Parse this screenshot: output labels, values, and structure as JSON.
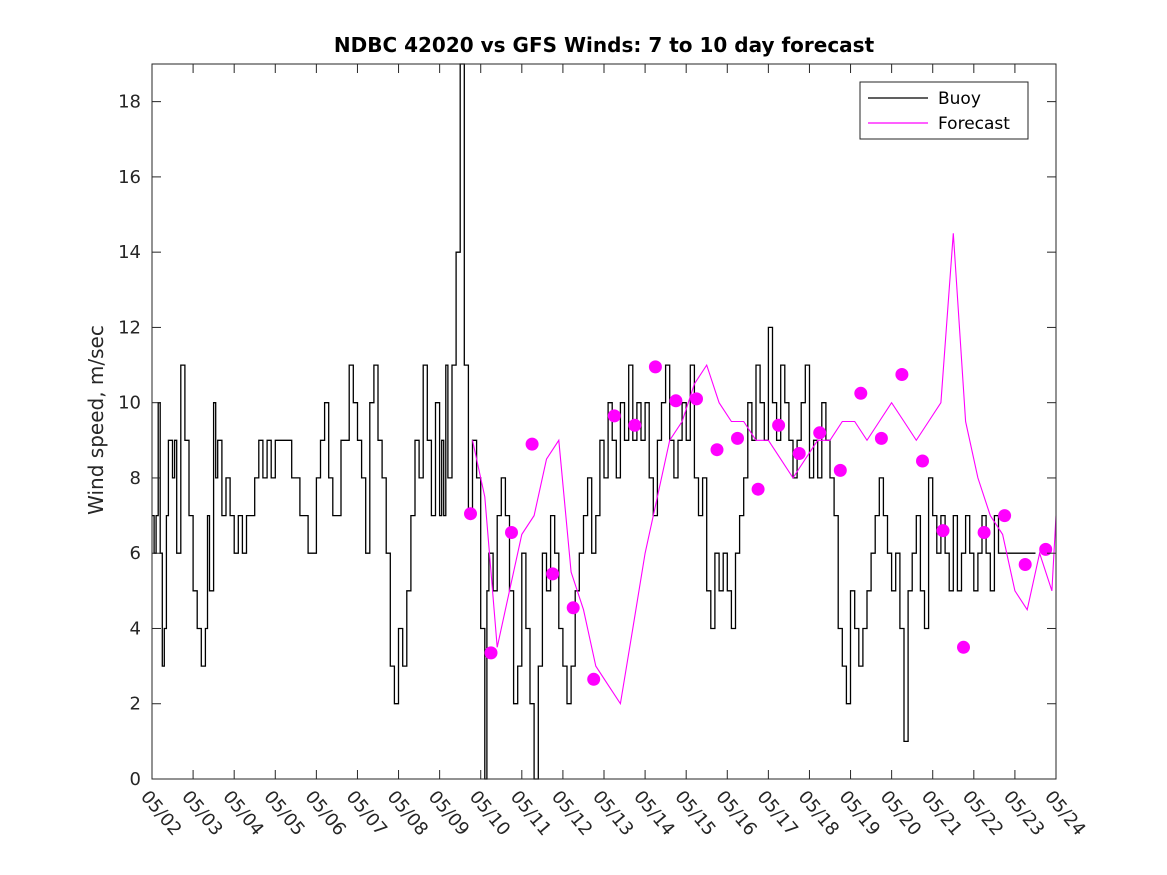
{
  "chart_data": {
    "type": "line",
    "title": "NDBC 42020 vs GFS Winds: 7 to 10 day forecast",
    "xlabel": "",
    "ylabel": "Wind speed, m/sec",
    "xlim": [
      0,
      22
    ],
    "ylim": [
      0,
      19
    ],
    "yticks": [
      0,
      2,
      4,
      6,
      8,
      10,
      12,
      14,
      16,
      18
    ],
    "xtick_positions": [
      0,
      1,
      2,
      3,
      4,
      5,
      6,
      7,
      8,
      9,
      10,
      11,
      12,
      13,
      14,
      15,
      16,
      17,
      18,
      19,
      20,
      21,
      22
    ],
    "xtick_labels": [
      "05/02",
      "05/03",
      "05/04",
      "05/05",
      "05/06",
      "05/07",
      "05/08",
      "05/09",
      "05/10",
      "05/11",
      "05/12",
      "05/13",
      "05/14",
      "05/15",
      "05/16",
      "05/17",
      "05/18",
      "05/19",
      "05/20",
      "05/21",
      "05/22",
      "05/23",
      "05/24"
    ],
    "legend": {
      "position": "top-right",
      "entries": [
        {
          "name": "Buoy",
          "color": "#000000"
        },
        {
          "name": "Forecast",
          "color": "#ff00ff"
        }
      ]
    },
    "grid": false,
    "series": [
      {
        "name": "Buoy",
        "color": "#000000",
        "x": [
          0,
          0.05,
          0.1,
          0.15,
          0.2,
          0.25,
          0.3,
          0.35,
          0.4,
          0.5,
          0.55,
          0.6,
          0.7,
          0.8,
          0.9,
          1.0,
          1.1,
          1.2,
          1.3,
          1.35,
          1.4,
          1.5,
          1.55,
          1.6,
          1.7,
          1.8,
          1.9,
          2.0,
          2.1,
          2.2,
          2.3,
          2.4,
          2.5,
          2.6,
          2.7,
          2.8,
          2.9,
          3.0,
          3.2,
          3.4,
          3.6,
          3.8,
          4.0,
          4.1,
          4.2,
          4.3,
          4.4,
          4.6,
          4.8,
          4.9,
          5.0,
          5.1,
          5.2,
          5.3,
          5.4,
          5.5,
          5.6,
          5.7,
          5.8,
          5.9,
          6.0,
          6.1,
          6.2,
          6.3,
          6.4,
          6.5,
          6.6,
          6.7,
          6.8,
          6.9,
          7.0,
          7.05,
          7.1,
          7.15,
          7.2,
          7.3,
          7.4,
          7.5,
          7.6,
          7.7,
          7.8,
          7.9,
          8.0,
          8.1,
          8.15,
          8.2,
          8.3,
          8.4,
          8.5,
          8.6,
          8.7,
          8.8,
          8.9,
          9.0,
          9.1,
          9.2,
          9.3,
          9.4,
          9.5,
          9.6,
          9.7,
          9.8,
          9.9,
          10.0,
          10.1,
          10.2,
          10.3,
          10.4,
          10.5,
          10.6,
          10.7,
          10.8,
          10.9,
          11.0,
          11.1,
          11.2,
          11.3,
          11.4,
          11.5,
          11.6,
          11.7,
          11.8,
          11.9,
          12.0,
          12.1,
          12.2,
          12.3,
          12.4,
          12.5,
          12.6,
          12.7,
          12.8,
          12.9,
          13.0,
          13.1,
          13.2,
          13.3,
          13.4,
          13.5,
          13.6,
          13.7,
          13.8,
          13.9,
          14.0,
          14.1,
          14.2,
          14.3,
          14.4,
          14.5,
          14.6,
          14.7,
          14.8,
          14.9,
          15.0,
          15.1,
          15.2,
          15.3,
          15.4,
          15.5,
          15.6,
          15.7,
          15.8,
          15.9,
          16.0,
          16.1,
          16.2,
          16.3,
          16.4,
          16.5,
          16.6,
          16.7,
          16.8,
          16.9,
          17.0,
          17.1,
          17.2,
          17.3,
          17.4,
          17.5,
          17.6,
          17.7,
          17.8,
          17.9,
          18.0,
          18.1,
          18.2,
          18.3,
          18.4,
          18.5,
          18.6,
          18.7,
          18.8,
          18.9,
          19.0,
          19.1,
          19.2,
          19.3,
          19.4,
          19.5,
          19.6,
          19.7,
          19.8,
          19.9,
          20.0,
          20.1,
          20.2,
          20.3,
          20.4,
          20.5,
          20.6,
          20.7,
          20.8,
          20.9,
          21.0,
          21.1,
          21.2,
          21.3,
          21.4,
          21.5
        ],
        "y": [
          7,
          6,
          7,
          10,
          6,
          3,
          4,
          7,
          9,
          8,
          9,
          6,
          11,
          9,
          7,
          5,
          4,
          3,
          4,
          7,
          5,
          10,
          8,
          9,
          7,
          8,
          7,
          6,
          7,
          6,
          7,
          7,
          8,
          9,
          8,
          9,
          8,
          9,
          9,
          8,
          7,
          6,
          8,
          9,
          10,
          8,
          7,
          9,
          11,
          10,
          9,
          8,
          6,
          10,
          11,
          9,
          8,
          6,
          3,
          2,
          4,
          3,
          5,
          7,
          9,
          8,
          11,
          9,
          7,
          10,
          7,
          9,
          7,
          11,
          8,
          11,
          14,
          19,
          11,
          7,
          9,
          8,
          4,
          0,
          5,
          6,
          5,
          7,
          8,
          7,
          5,
          2,
          3,
          6,
          4,
          2,
          0,
          3,
          6,
          5,
          7,
          6,
          4,
          3,
          2,
          3,
          5,
          6,
          7,
          8,
          6,
          7,
          9,
          8,
          10,
          9,
          8,
          10,
          9,
          11,
          9,
          10,
          9,
          10,
          8,
          7,
          9,
          10,
          11,
          9,
          8,
          9,
          10,
          9,
          11,
          8,
          7,
          8,
          5,
          4,
          6,
          5,
          6,
          5,
          4,
          6,
          7,
          8,
          10,
          9,
          11,
          10,
          9,
          12,
          10,
          9,
          11,
          10,
          9,
          8,
          9,
          10,
          11,
          8,
          9,
          8,
          10,
          9,
          8,
          7,
          4,
          3,
          2,
          5,
          4,
          3,
          4,
          5,
          6,
          7,
          8,
          7,
          6,
          5,
          6,
          4,
          1,
          5,
          6,
          7,
          5,
          4,
          8,
          7,
          6,
          7,
          6,
          5,
          7,
          5,
          6,
          7,
          6,
          5,
          6,
          7,
          6,
          5,
          7,
          6,
          6,
          6,
          6,
          6,
          6,
          6,
          6,
          6,
          6
        ]
      },
      {
        "name": "Forecast",
        "color": "#ff00ff",
        "x": [
          7.8,
          8.1,
          8.4,
          8.7,
          9.0,
          9.3,
          9.6,
          9.9,
          10.2,
          10.5,
          10.8,
          11.1,
          11.4,
          11.7,
          12.0,
          12.3,
          12.6,
          12.9,
          13.2,
          13.5,
          13.8,
          14.1,
          14.4,
          14.7,
          15.0,
          15.3,
          15.6,
          15.9,
          16.2,
          16.5,
          16.8,
          17.1,
          17.4,
          17.7,
          18.0,
          18.3,
          18.6,
          18.9,
          19.2,
          19.5,
          19.8,
          20.1,
          20.4,
          20.7,
          21.0,
          21.3,
          21.6,
          21.9,
          22.0
        ],
        "y": [
          9,
          7.5,
          3.5,
          5,
          6.5,
          7,
          8.5,
          9,
          5.5,
          4.5,
          3,
          2.5,
          2,
          4,
          6,
          7.5,
          9,
          9.5,
          10.5,
          11,
          10,
          9.5,
          9.5,
          9,
          9,
          8.5,
          8,
          8.5,
          9,
          9,
          9.5,
          9.5,
          9,
          9.5,
          10,
          9.5,
          9,
          9.5,
          10,
          14.5,
          9.5,
          8,
          7,
          6.5,
          5,
          4.5,
          6,
          5,
          7
        ]
      }
    ],
    "markers": {
      "series": "Forecast",
      "color": "#ff00ff",
      "x": [
        7.75,
        8.25,
        8.75,
        9.25,
        9.75,
        10.25,
        10.75,
        11.25,
        11.75,
        12.25,
        12.75,
        13.25,
        13.75,
        14.25,
        14.75,
        15.25,
        15.75,
        16.25,
        16.75,
        17.25,
        17.75,
        18.25,
        18.75,
        19.25,
        19.75,
        20.25,
        20.75,
        21.25,
        21.75
      ],
      "y": [
        7.05,
        3.35,
        6.55,
        8.9,
        5.45,
        4.55,
        2.65,
        9.65,
        9.4,
        10.95,
        10.05,
        10.1,
        8.75,
        9.05,
        7.7,
        9.4,
        8.65,
        9.2,
        8.2,
        10.25,
        9.05,
        10.75,
        8.45,
        6.6,
        3.5,
        6.55,
        7,
        5.7,
        6.1
      ]
    }
  }
}
